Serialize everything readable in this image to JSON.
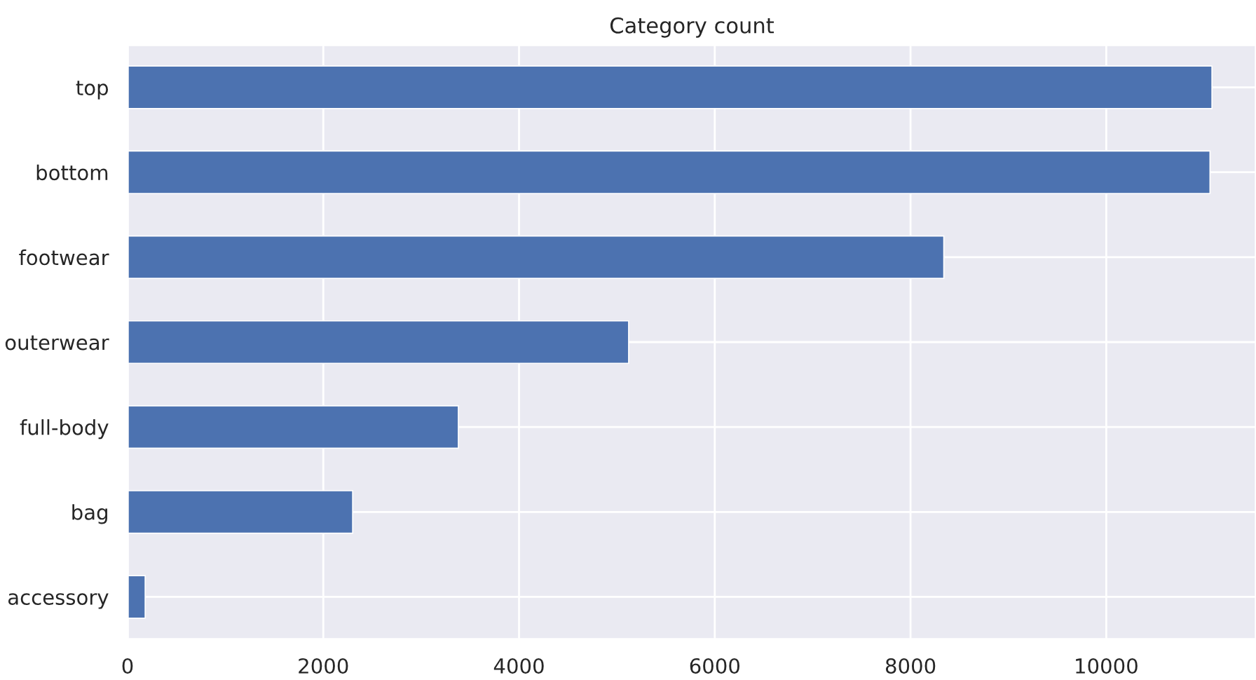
{
  "chart_data": {
    "type": "bar",
    "orientation": "horizontal",
    "title": "Category count",
    "categories": [
      "top",
      "bottom",
      "footwear",
      "outerwear",
      "full-body",
      "bag",
      "accessory"
    ],
    "values": [
      11080,
      11060,
      8340,
      5120,
      3380,
      2300,
      180
    ],
    "color": "#4c72b0",
    "xlim": [
      0,
      11530
    ],
    "xticks": [
      0,
      2000,
      4000,
      6000,
      8000,
      10000
    ],
    "grid": true
  }
}
